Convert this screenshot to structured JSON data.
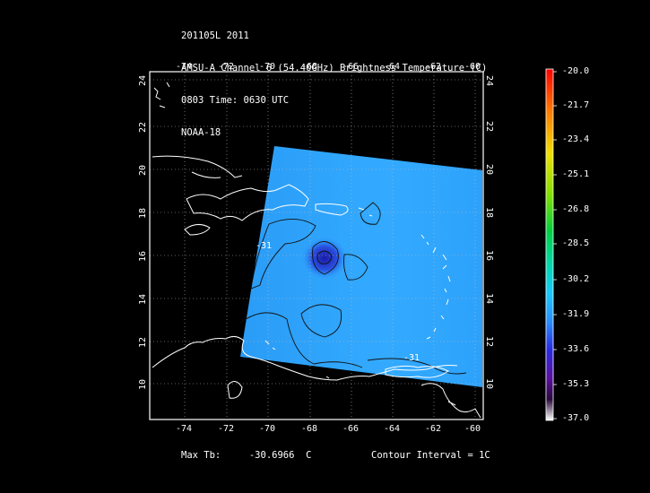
{
  "header": {
    "line1": "201105L 2011",
    "line2": "AMSU-A Channel 6 (54.40GHz) Brightness Temperature (C)",
    "line3": "0803 Time: 0630 UTC",
    "line4": "NOAA-18"
  },
  "map": {
    "lon_ticks": [
      "-74",
      "-72",
      "-70",
      "-68",
      "-66",
      "-64",
      "-62",
      "-60"
    ],
    "lat_ticks": [
      "24",
      "22",
      "20",
      "18",
      "16",
      "14",
      "12",
      "10"
    ],
    "contour_labels": [
      "-31",
      "-31"
    ],
    "swath_color": "#29a3ff",
    "cold_core_color": "#1a1aa8"
  },
  "colorbar": {
    "labels": [
      "-20.0",
      "-21.7",
      "-23.4",
      "-25.1",
      "-26.8",
      "-28.5",
      "-30.2",
      "-31.9",
      "-33.6",
      "-35.3",
      "-37.0"
    ]
  },
  "footer": {
    "max_tb": "Max Tb:     -30.6966  C",
    "contour_interval": "Contour Interval = 1C"
  }
}
